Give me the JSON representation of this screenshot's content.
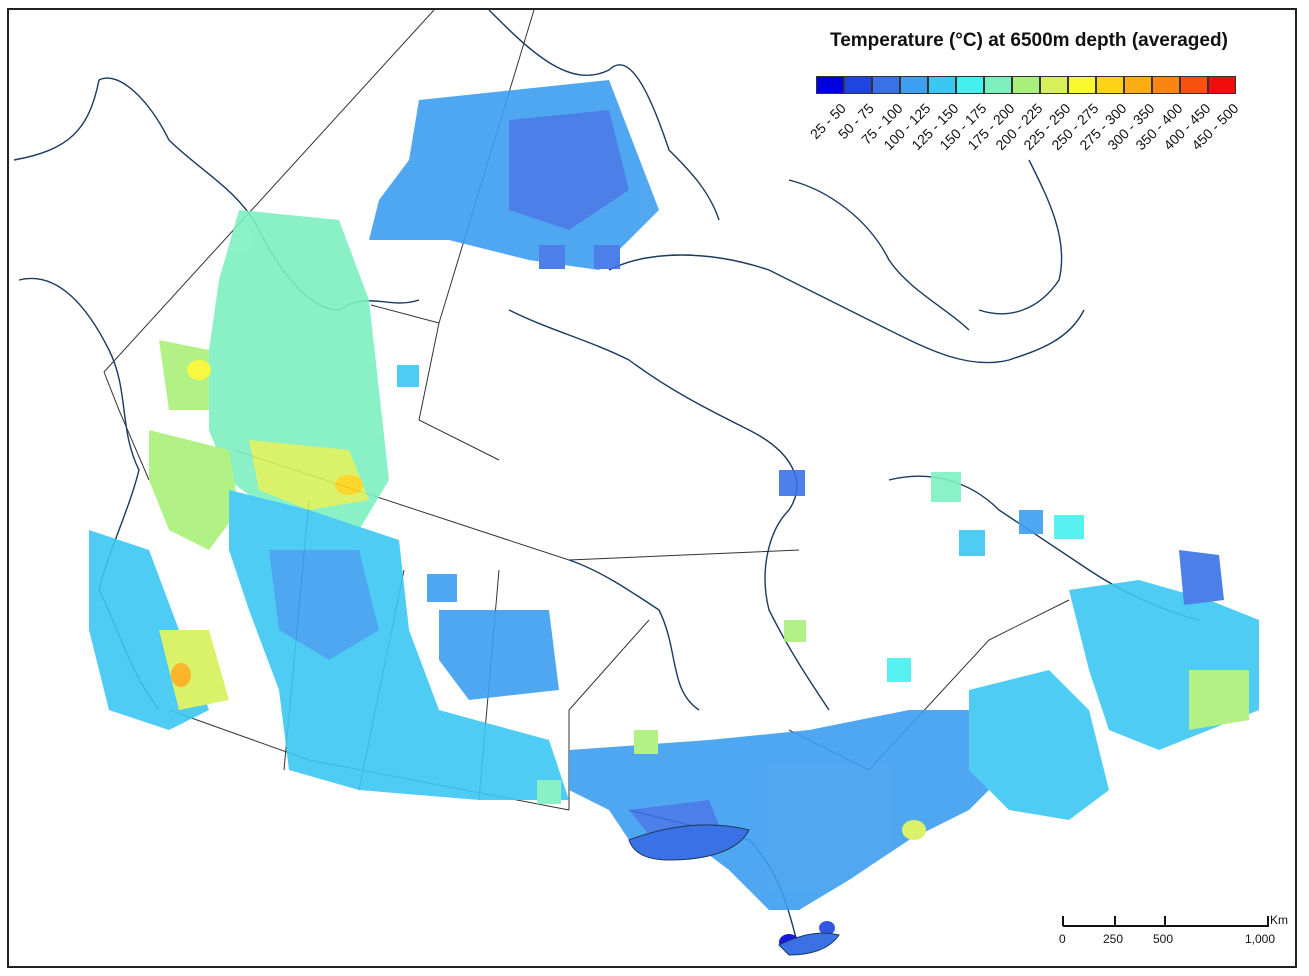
{
  "legend": {
    "title": "Temperature (°C) at 6500m depth (averaged)",
    "ranges": [
      {
        "label": "25 - 50",
        "color": "#0000dd"
      },
      {
        "label": "50 - 75",
        "color": "#1f45e0"
      },
      {
        "label": "75 - 100",
        "color": "#3a72e6"
      },
      {
        "label": "100 - 125",
        "color": "#3e9ef0"
      },
      {
        "label": "125 - 150",
        "color": "#3cc7f3"
      },
      {
        "label": "150 - 175",
        "color": "#44f0ef"
      },
      {
        "label": "175 - 200",
        "color": "#7ef0c0"
      },
      {
        "label": "200 - 225",
        "color": "#a9f07a"
      },
      {
        "label": "225 - 250",
        "color": "#d7f05a"
      },
      {
        "label": "250 - 275",
        "color": "#f8f82e"
      },
      {
        "label": "275 - 300",
        "color": "#fdd317"
      },
      {
        "label": "300 - 350",
        "color": "#fcad13"
      },
      {
        "label": "350 - 400",
        "color": "#fb8512"
      },
      {
        "label": "400 - 450",
        "color": "#f8510f"
      },
      {
        "label": "450 - 500",
        "color": "#f20d0d"
      }
    ]
  },
  "scalebar": {
    "unit": "Km",
    "ticks": [
      "0",
      "250",
      "500",
      "1,000"
    ]
  }
}
